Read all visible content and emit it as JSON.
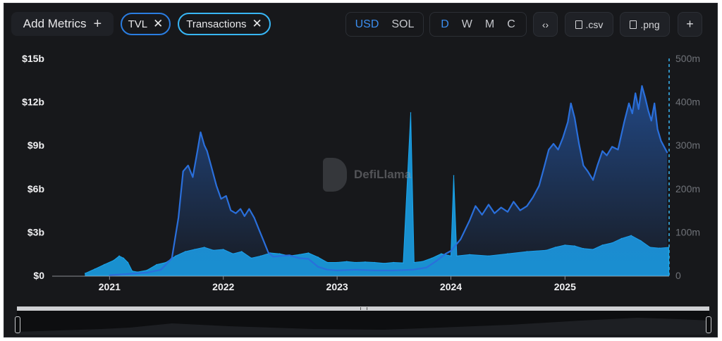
{
  "toolbar": {
    "add_metrics_label": "Add Metrics",
    "add_metrics_icon": "plus-icon",
    "metric_pills": [
      {
        "label": "TVL",
        "icon": "close-icon",
        "color": "#2a7de1"
      },
      {
        "label": "Transactions",
        "icon": "close-icon",
        "color": "#38b6f5"
      }
    ],
    "currency_options": [
      "USD",
      "SOL"
    ],
    "currency_selected": "USD",
    "interval_options": [
      "D",
      "W",
      "M",
      "C"
    ],
    "interval_selected": "D",
    "embed_icon": "code-icon",
    "csv_label": ".csv",
    "png_label": ".png",
    "add_icon": "plus-icon"
  },
  "watermark": {
    "text": "DefiLlama",
    "icon": "llama-logo"
  },
  "chart_data": {
    "type": "line",
    "x_tick_labels": [
      "2021",
      "2022",
      "2023",
      "2024",
      "2025"
    ],
    "y_left": {
      "tick_labels": [
        "$0",
        "$3b",
        "$6b",
        "$9b",
        "$12b",
        "$15b"
      ],
      "range": [
        0,
        15000000000
      ],
      "unit": "USD"
    },
    "y_right": {
      "tick_labels": [
        "0",
        "100m",
        "200m",
        "300m",
        "400m",
        "500m"
      ],
      "range": [
        0,
        500000000
      ]
    },
    "series": [
      {
        "name": "TVL",
        "color": "#2a6fdb",
        "axis": "left",
        "kind": "area-line",
        "points": [
          [
            "2021-01-01",
            0.02
          ],
          [
            "2021-03-01",
            0.1
          ],
          [
            "2021-05-01",
            0.2
          ],
          [
            "2021-06-15",
            0.4
          ],
          [
            "2021-07-20",
            1.2
          ],
          [
            "2021-08-10",
            4.0
          ],
          [
            "2021-08-25",
            7.2
          ],
          [
            "2021-09-10",
            7.6
          ],
          [
            "2021-09-25",
            6.8
          ],
          [
            "2021-10-10",
            8.6
          ],
          [
            "2021-10-20",
            9.9
          ],
          [
            "2021-11-01",
            9.0
          ],
          [
            "2021-11-10",
            8.6
          ],
          [
            "2021-11-25",
            7.4
          ],
          [
            "2021-12-10",
            6.2
          ],
          [
            "2021-12-25",
            5.3
          ],
          [
            "2022-01-10",
            5.5
          ],
          [
            "2022-01-25",
            4.5
          ],
          [
            "2022-02-10",
            4.3
          ],
          [
            "2022-02-25",
            4.6
          ],
          [
            "2022-03-10",
            4.1
          ],
          [
            "2022-03-25",
            4.6
          ],
          [
            "2022-04-10",
            4.0
          ],
          [
            "2022-04-25",
            3.2
          ],
          [
            "2022-05-10",
            2.4
          ],
          [
            "2022-05-25",
            1.6
          ],
          [
            "2022-06-10",
            1.3
          ],
          [
            "2022-07-01",
            1.35
          ],
          [
            "2022-08-01",
            1.4
          ],
          [
            "2022-09-01",
            1.2
          ],
          [
            "2022-10-01",
            1.15
          ],
          [
            "2022-11-01",
            0.6
          ],
          [
            "2022-12-01",
            0.4
          ],
          [
            "2023-01-01",
            0.35
          ],
          [
            "2023-03-01",
            0.4
          ],
          [
            "2023-05-01",
            0.35
          ],
          [
            "2023-07-01",
            0.35
          ],
          [
            "2023-09-01",
            0.4
          ],
          [
            "2023-10-15",
            0.55
          ],
          [
            "2023-11-15",
            1.0
          ],
          [
            "2023-12-15",
            1.5
          ],
          [
            "2024-01-01",
            1.7
          ],
          [
            "2024-02-01",
            2.5
          ],
          [
            "2024-03-01",
            3.8
          ],
          [
            "2024-03-20",
            4.8
          ],
          [
            "2024-04-10",
            4.2
          ],
          [
            "2024-05-01",
            4.9
          ],
          [
            "2024-05-20",
            4.3
          ],
          [
            "2024-06-10",
            4.7
          ],
          [
            "2024-07-01",
            4.4
          ],
          [
            "2024-07-20",
            5.1
          ],
          [
            "2024-08-10",
            4.5
          ],
          [
            "2024-09-01",
            4.8
          ],
          [
            "2024-09-20",
            5.4
          ],
          [
            "2024-10-10",
            6.2
          ],
          [
            "2024-10-25",
            7.4
          ],
          [
            "2024-11-10",
            8.7
          ],
          [
            "2024-11-25",
            9.1
          ],
          [
            "2024-12-10",
            8.7
          ],
          [
            "2024-12-25",
            9.5
          ],
          [
            "2025-01-10",
            10.6
          ],
          [
            "2025-01-20",
            11.9
          ],
          [
            "2025-02-01",
            10.9
          ],
          [
            "2025-02-15",
            9.1
          ],
          [
            "2025-03-01",
            7.6
          ],
          [
            "2025-03-15",
            7.2
          ],
          [
            "2025-04-01",
            6.6
          ],
          [
            "2025-04-15",
            7.6
          ],
          [
            "2025-05-01",
            8.6
          ],
          [
            "2025-05-15",
            8.3
          ],
          [
            "2025-06-01",
            8.9
          ],
          [
            "2025-06-20",
            8.7
          ],
          [
            "2025-07-10",
            10.6
          ],
          [
            "2025-07-25",
            11.9
          ],
          [
            "2025-08-05",
            11.2
          ],
          [
            "2025-08-15",
            12.6
          ],
          [
            "2025-08-25",
            11.5
          ],
          [
            "2025-09-05",
            13.1
          ],
          [
            "2025-09-15",
            12.3
          ],
          [
            "2025-09-25",
            11.4
          ],
          [
            "2025-10-05",
            10.7
          ],
          [
            "2025-10-15",
            11.9
          ],
          [
            "2025-10-25",
            10.1
          ],
          [
            "2025-11-05",
            9.3
          ],
          [
            "2025-11-15",
            8.9
          ],
          [
            "2025-11-25",
            8.5
          ]
        ]
      },
      {
        "name": "Transactions",
        "color": "#1aa6ee",
        "axis": "right",
        "kind": "bar-area",
        "points": [
          [
            "2020-10-15",
            5
          ],
          [
            "2020-11-15",
            15
          ],
          [
            "2020-12-15",
            25
          ],
          [
            "2021-01-15",
            35
          ],
          [
            "2021-02-01",
            45
          ],
          [
            "2021-02-15",
            40
          ],
          [
            "2021-03-01",
            30
          ],
          [
            "2021-03-15",
            10
          ],
          [
            "2021-04-01",
            8
          ],
          [
            "2021-05-01",
            12
          ],
          [
            "2021-06-01",
            25
          ],
          [
            "2021-07-01",
            30
          ],
          [
            "2021-08-01",
            45
          ],
          [
            "2021-09-01",
            55
          ],
          [
            "2021-10-01",
            60
          ],
          [
            "2021-11-01",
            65
          ],
          [
            "2021-12-01",
            58
          ],
          [
            "2022-01-01",
            60
          ],
          [
            "2022-02-01",
            50
          ],
          [
            "2022-03-01",
            55
          ],
          [
            "2022-04-01",
            40
          ],
          [
            "2022-05-01",
            45
          ],
          [
            "2022-06-01",
            52
          ],
          [
            "2022-07-01",
            50
          ],
          [
            "2022-08-01",
            45
          ],
          [
            "2022-09-01",
            48
          ],
          [
            "2022-10-01",
            52
          ],
          [
            "2022-11-01",
            42
          ],
          [
            "2022-12-01",
            30
          ],
          [
            "2023-01-01",
            30
          ],
          [
            "2023-02-01",
            32
          ],
          [
            "2023-03-01",
            30
          ],
          [
            "2023-04-01",
            31
          ],
          [
            "2023-05-01",
            30
          ],
          [
            "2023-06-01",
            28
          ],
          [
            "2023-07-01",
            30
          ],
          [
            "2023-08-01",
            29
          ],
          [
            "2023-08-25",
            375
          ],
          [
            "2023-09-05",
            30
          ],
          [
            "2023-10-01",
            32
          ],
          [
            "2023-11-01",
            40
          ],
          [
            "2023-12-01",
            50
          ],
          [
            "2024-01-01",
            45
          ],
          [
            "2024-01-10",
            230
          ],
          [
            "2024-01-20",
            45
          ],
          [
            "2024-03-01",
            48
          ],
          [
            "2024-05-01",
            45
          ],
          [
            "2024-07-01",
            50
          ],
          [
            "2024-09-01",
            55
          ],
          [
            "2024-11-01",
            58
          ],
          [
            "2024-12-01",
            65
          ],
          [
            "2025-01-01",
            70
          ],
          [
            "2025-02-01",
            68
          ],
          [
            "2025-03-01",
            62
          ],
          [
            "2025-04-01",
            60
          ],
          [
            "2025-05-01",
            70
          ],
          [
            "2025-06-01",
            75
          ],
          [
            "2025-07-01",
            85
          ],
          [
            "2025-08-01",
            92
          ],
          [
            "2025-09-01",
            80
          ],
          [
            "2025-10-01",
            65
          ],
          [
            "2025-11-01",
            63
          ],
          [
            "2025-11-30",
            65
          ]
        ]
      }
    ],
    "grid": false,
    "legend": "none"
  },
  "brush": {
    "handle_left_icon": "drag-handle-icon",
    "handle_right_icon": "drag-handle-icon",
    "grip_icon": "grip-icon"
  }
}
